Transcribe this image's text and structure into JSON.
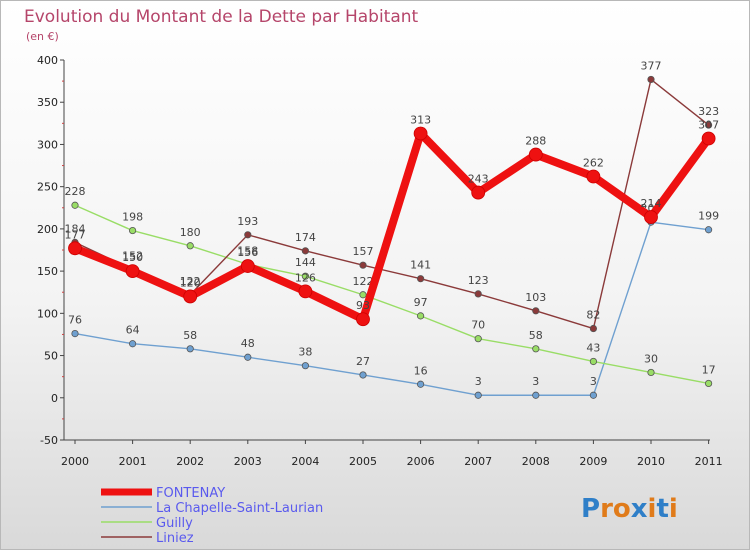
{
  "chart_data": {
    "type": "line",
    "title": "Evolution du Montant de la Dette par Habitant",
    "subtitle": "(en €)",
    "xlabel": "",
    "ylabel": "",
    "categories": [
      "2000",
      "2001",
      "2002",
      "2003",
      "2004",
      "2005",
      "2006",
      "2007",
      "2008",
      "2009",
      "2010",
      "2011"
    ],
    "ylim": [
      -50,
      400
    ],
    "yticks": [
      -50,
      0,
      50,
      100,
      150,
      200,
      250,
      300,
      350,
      400
    ],
    "grid": false,
    "legend_position": "bottom-left",
    "series": [
      {
        "name": "FONTENAY",
        "color": "#ee1111",
        "values": [
          177,
          150,
          120,
          156,
          126,
          93,
          313,
          243,
          288,
          262,
          214,
          307
        ]
      },
      {
        "name": "La Chapelle-Saint-Laurian",
        "color": "#6fa0d0",
        "values": [
          76,
          64,
          58,
          48,
          38,
          27,
          16,
          3,
          3,
          3,
          208,
          199
        ]
      },
      {
        "name": "Guilly",
        "color": "#99dd66",
        "values": [
          228,
          198,
          180,
          158,
          144,
          122,
          97,
          70,
          58,
          43,
          30,
          17
        ]
      },
      {
        "name": "Liniez",
        "color": "#8b3a3a",
        "values": [
          184,
          152,
          122,
          193,
          174,
          157,
          141,
          123,
          103,
          82,
          377,
          323
        ]
      }
    ]
  },
  "brand": {
    "text": "Proxiti",
    "letters": [
      "P",
      "r",
      "o",
      "x",
      "i",
      "t",
      "i"
    ],
    "colors": [
      "#2f7fc8",
      "#e07b1a",
      "#e07b1a",
      "#2f7fc8",
      "#e07b1a",
      "#2f7fc8",
      "#e07b1a"
    ]
  }
}
